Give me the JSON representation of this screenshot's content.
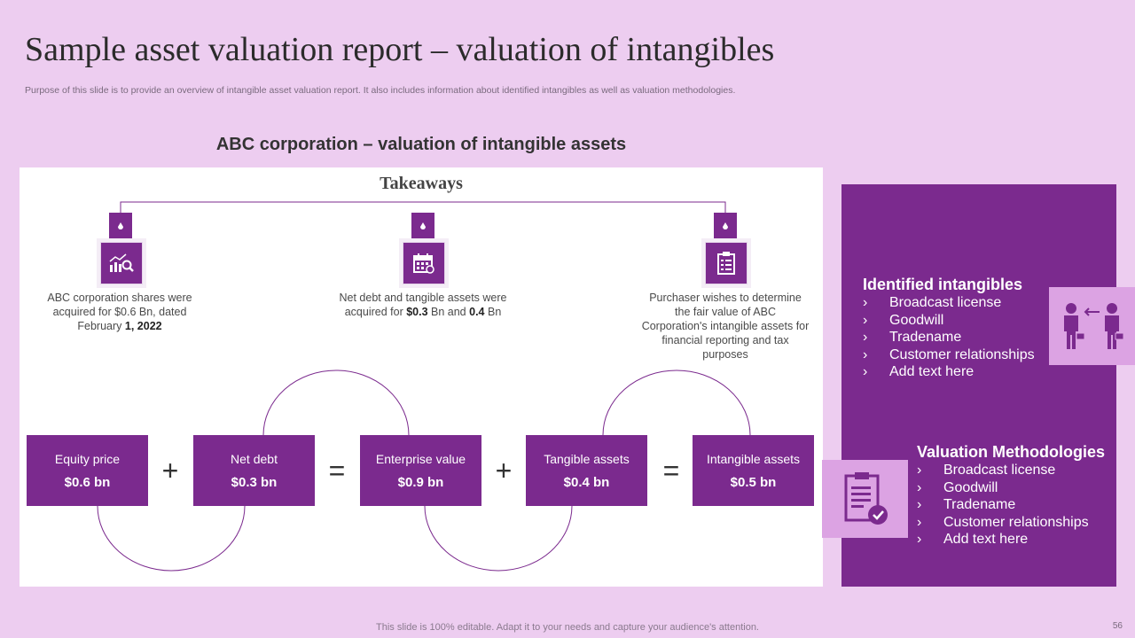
{
  "slide": {
    "title": "Sample asset valuation report – valuation of intangibles",
    "subtitle": "Purpose of this slide is to provide an overview of intangible asset valuation report. It also includes information about identified intangibles as well as valuation methodologies.",
    "section_heading": "ABC corporation – valuation of intangible assets",
    "footer": "This slide is 100% editable. Adapt it to your needs and capture your audience's attention.",
    "page_number": "56"
  },
  "takeaways": {
    "title": "Takeaways",
    "items": [
      {
        "icon": "chart-search-icon",
        "text_pre": "ABC corporation shares were acquired for $0.6 Bn, dated February ",
        "text_bold": "1, 2022",
        "text_post": ""
      },
      {
        "icon": "calendar-icon",
        "text_pre": "Net debt and tangible assets were acquired for ",
        "bold_1": "$0.3",
        "mid": " Bn and ",
        "bold_2": "0.4",
        "post": " Bn"
      },
      {
        "icon": "clipboard-icon",
        "text": "Purchaser wishes to determine the fair value of ABC Corporation's intangible assets for financial reporting and tax purposes"
      }
    ]
  },
  "equation": {
    "boxes": [
      {
        "label": "Equity price",
        "value": "$0.6 bn"
      },
      {
        "label": "Net debt",
        "value": "$0.3 bn"
      },
      {
        "label": "Enterprise value",
        "value": "$0.9 bn"
      },
      {
        "label": "Tangible assets",
        "value": "$0.4 bn"
      },
      {
        "label": "Intangible assets",
        "value": "$0.5 bn"
      }
    ],
    "operators": [
      "+",
      "=",
      "+",
      "="
    ]
  },
  "identified_intangibles": {
    "heading": "Identified intangibles",
    "chevron": "›",
    "items": [
      "Broadcast license",
      "Goodwill",
      "Tradename",
      "Customer relationships",
      "Add text here"
    ]
  },
  "valuation_methodologies": {
    "heading": "Valuation Methodologies",
    "chevron": "›",
    "items": [
      "Broadcast license",
      "Goodwill",
      "Tradename",
      "Customer relationships",
      "Add text here"
    ]
  },
  "colors": {
    "background": "#edcdf0",
    "accent": "#7b2a8e",
    "accent_light": "#dca3e3",
    "panel": "#ffffff"
  }
}
